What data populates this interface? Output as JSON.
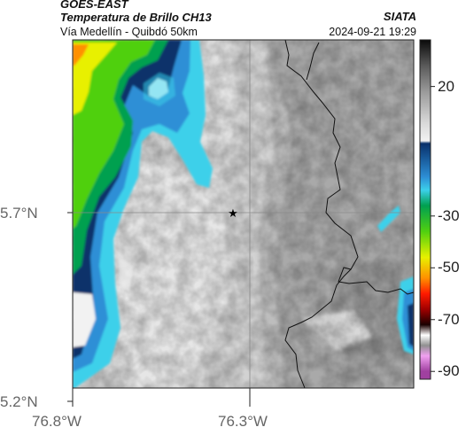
{
  "header": {
    "satellite": "GOES-EAST",
    "product": "Temperatura de Brillo CH13",
    "subtitle": "Vía Medellín - Quibdó 50km",
    "institution": "SIATA",
    "timestamp": "2024-09-21 19:29"
  },
  "axes": {
    "lat_labels": [
      "5.7°N",
      "5.2°N"
    ],
    "lon_labels": [
      "76.8°W",
      "76.3°W"
    ]
  },
  "colorbar": {
    "tick_labels": [
      "20",
      "-30",
      "-50",
      "-70",
      "-90"
    ],
    "ticks": [
      20,
      -30,
      -50,
      -70,
      -90
    ],
    "range": [
      -93,
      38
    ],
    "stops": [
      {
        "v": 38,
        "c": "#0a0a0a"
      },
      {
        "v": 28,
        "c": "#5a5a5a"
      },
      {
        "v": 18,
        "c": "#9a9a9a"
      },
      {
        "v": 6,
        "c": "#d8d8d8"
      },
      {
        "v": -1,
        "c": "#f2f2f2"
      },
      {
        "v": -2,
        "c": "#08306b"
      },
      {
        "v": -15,
        "c": "#2d8fd6"
      },
      {
        "v": -20,
        "c": "#3cd0ea"
      },
      {
        "v": -26,
        "c": "#00a050"
      },
      {
        "v": -36,
        "c": "#50d010"
      },
      {
        "v": -46,
        "c": "#e8f000"
      },
      {
        "v": -54,
        "c": "#ff9000"
      },
      {
        "v": -60,
        "c": "#ff1a00"
      },
      {
        "v": -66,
        "c": "#a00000"
      },
      {
        "v": -72,
        "c": "#1a0000"
      },
      {
        "v": -76,
        "c": "#ffffff"
      },
      {
        "v": -80,
        "c": "#909090"
      },
      {
        "v": -84,
        "c": "#f0a0f0"
      },
      {
        "v": -90,
        "c": "#a040a0"
      }
    ]
  },
  "map": {
    "marker": "star-icon",
    "gridlines": "on",
    "colors": {
      "border": "#000000",
      "grid": "#8a8a8a"
    }
  }
}
